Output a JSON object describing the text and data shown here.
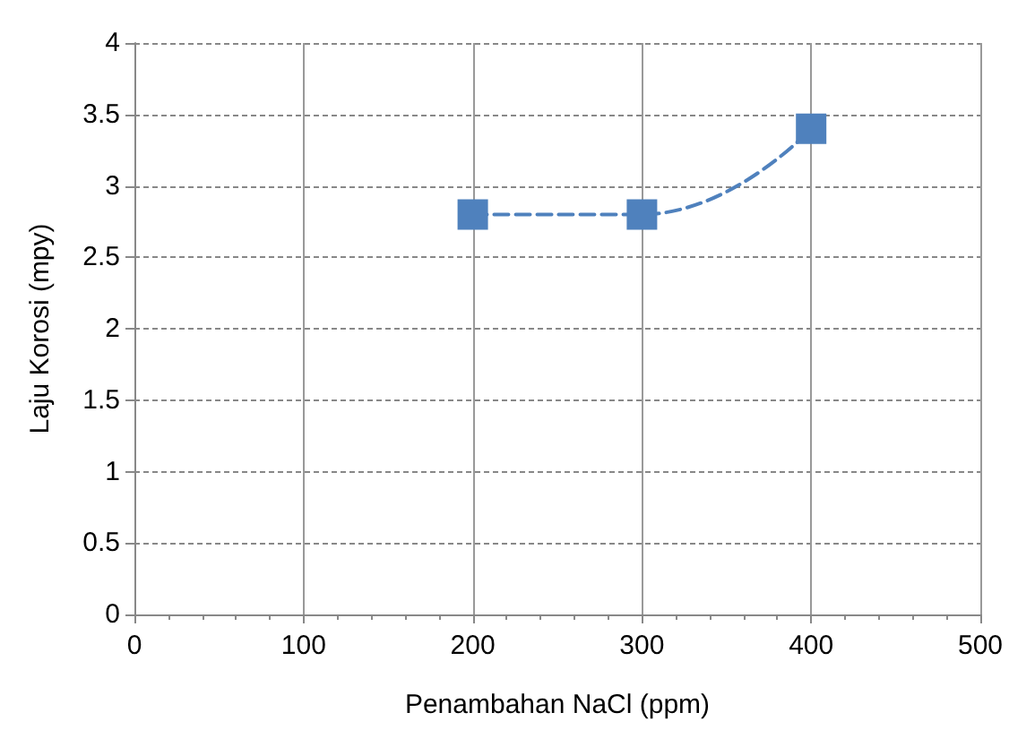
{
  "chart_data": {
    "type": "line",
    "xlabel": "Penambahan NaCl (ppm)",
    "ylabel": "Laju Korosi (mpy)",
    "x": [
      200,
      300,
      400
    ],
    "series": [
      {
        "color": "#4f81bd",
        "values": [
          2.8,
          2.8,
          3.4
        ]
      }
    ],
    "xlim": [
      0,
      500
    ],
    "xticks": [
      0,
      100,
      200,
      300,
      400,
      500
    ],
    "ylim": [
      0,
      4
    ],
    "yticks": [
      0,
      0.5,
      1,
      1.5,
      2,
      2.5,
      3,
      3.5,
      4
    ],
    "grid": true,
    "marker": "square",
    "line_style": "dashed"
  }
}
